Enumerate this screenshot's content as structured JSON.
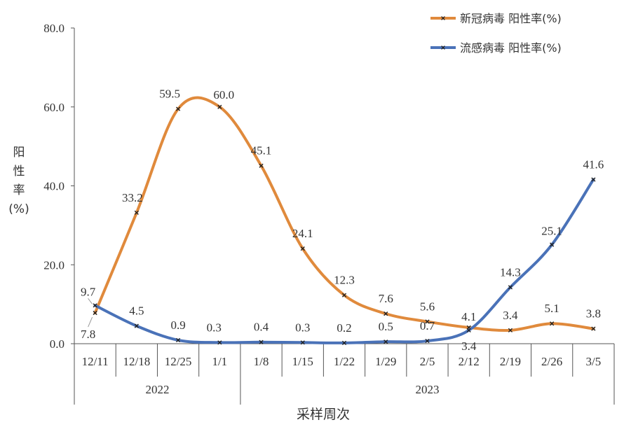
{
  "chart_data": {
    "type": "line",
    "categories": [
      "12/11",
      "12/18",
      "12/25",
      "1/1",
      "1/8",
      "1/15",
      "1/22",
      "1/29",
      "2/5",
      "2/12",
      "2/19",
      "2/26",
      "3/5"
    ],
    "groups": [
      {
        "label": "2022",
        "categories": [
          "12/11",
          "12/18",
          "12/25",
          "1/1"
        ]
      },
      {
        "label": "2023",
        "categories": [
          "1/8",
          "1/15",
          "1/22",
          "1/29",
          "2/5",
          "2/12",
          "2/19",
          "2/26",
          "3/5"
        ]
      }
    ],
    "series": [
      {
        "name": "新冠病毒 阳性率(%)",
        "color": "#E08A3C",
        "values": [
          7.8,
          33.2,
          59.5,
          60.0,
          45.1,
          24.1,
          12.3,
          7.6,
          5.6,
          4.1,
          3.4,
          5.1,
          3.8
        ]
      },
      {
        "name": "流感病毒 阳性率(%)",
        "color": "#4A72B8",
        "values": [
          9.7,
          4.5,
          0.9,
          0.3,
          0.4,
          0.3,
          0.2,
          0.5,
          0.7,
          3.4,
          14.3,
          25.1,
          41.6
        ]
      }
    ],
    "data_labels": [
      [
        "7.8",
        "33.2",
        "59.5",
        "60.0",
        "45.1",
        "24.1",
        "12.3",
        "7.6",
        "5.6",
        "4.1",
        "3.4",
        "5.1",
        "3.8"
      ],
      [
        "9.7",
        "4.5",
        "0.9",
        "0.3",
        "0.4",
        "0.3",
        "0.2",
        "0.5",
        "0.7",
        "3.4",
        "14.3",
        "25.1",
        "41.6"
      ]
    ],
    "ylim": [
      0,
      80
    ],
    "yticks": [
      "0.0",
      "20.0",
      "40.0",
      "60.0",
      "80.0"
    ],
    "ylabel": "阳性率 (%)",
    "xlabel": "采样周次",
    "legend_position": "top-right",
    "grid": false
  }
}
